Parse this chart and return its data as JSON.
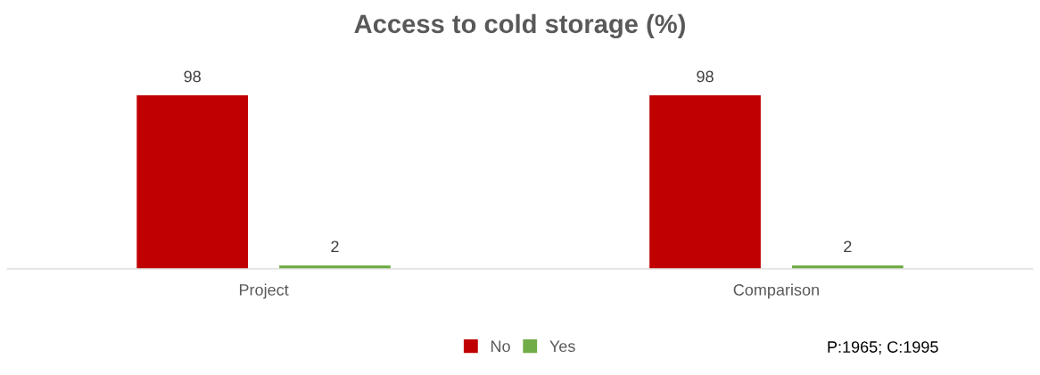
{
  "chart_data": {
    "type": "bar",
    "title": "Access to cold storage (%)",
    "categories": [
      "Project",
      "Comparison"
    ],
    "series": [
      {
        "name": "No",
        "color": "#c00000",
        "values": [
          98,
          98
        ]
      },
      {
        "name": "Yes",
        "color": "#70ad47",
        "values": [
          2,
          2
        ]
      }
    ],
    "tick_labels": "x",
    "data_labels": true,
    "legend": "bottom",
    "grid": false,
    "annotations": [
      "P:1965; C:1995"
    ]
  }
}
